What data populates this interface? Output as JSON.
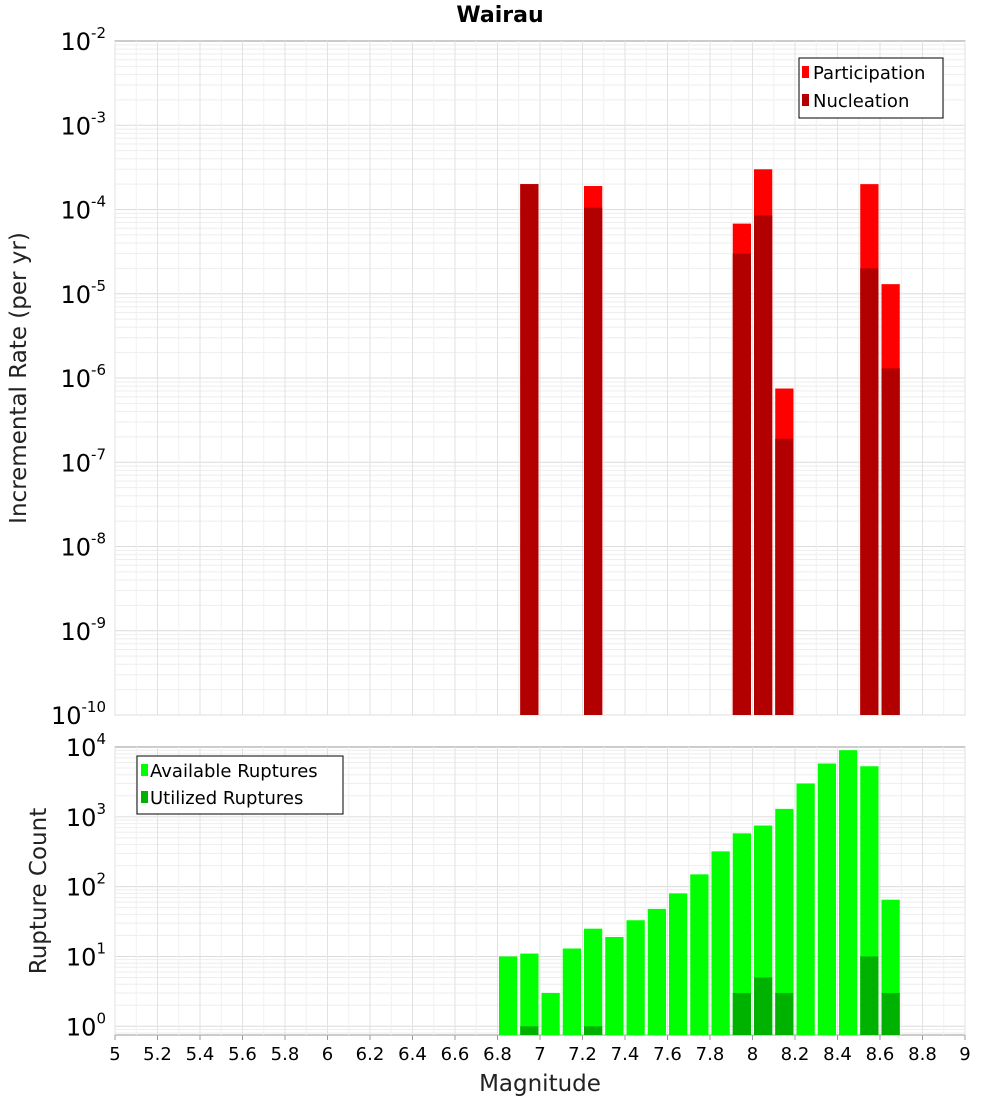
{
  "chart_data": [
    {
      "type": "bar",
      "title": "Wairau",
      "ylabel": "Incremental Rate (per yr)",
      "yscale": "log",
      "ylim": [
        1e-10,
        0.01
      ],
      "xlim": [
        5,
        9
      ],
      "grid": true,
      "legend_position": "top-right",
      "series": [
        {
          "name": "Participation",
          "color": "#ff0000",
          "x": [
            6.95,
            7.25,
            7.95,
            8.05,
            8.15,
            8.55,
            8.65
          ],
          "values": [
            0.0002,
            0.00019,
            6.8e-05,
            0.0003,
            7.5e-07,
            0.0002,
            1.3e-05
          ]
        },
        {
          "name": "Nucleation",
          "color": "#b20000",
          "x": [
            6.95,
            7.25,
            7.95,
            8.05,
            8.15,
            8.55,
            8.65
          ],
          "values": [
            0.0002,
            0.000105,
            3e-05,
            8.5e-05,
            1.9e-07,
            2e-05,
            1.3e-06
          ]
        }
      ]
    },
    {
      "type": "bar",
      "xlabel": "Magnitude",
      "ylabel": "Rupture Count",
      "yscale": "log",
      "ylim": [
        0.75,
        10000
      ],
      "xlim": [
        5,
        9
      ],
      "grid": true,
      "legend_position": "top-left",
      "xticks": [
        "5",
        "5.2",
        "5.4",
        "5.6",
        "5.8",
        "6",
        "6.2",
        "6.4",
        "6.6",
        "6.8",
        "7",
        "7.2",
        "7.4",
        "7.6",
        "7.8",
        "8",
        "8.2",
        "8.4",
        "8.6",
        "8.8",
        "9"
      ],
      "series": [
        {
          "name": "Available Ruptures",
          "color": "#00ff00",
          "x": [
            6.85,
            6.95,
            7.05,
            7.15,
            7.25,
            7.35,
            7.45,
            7.55,
            7.65,
            7.75,
            7.85,
            7.95,
            8.05,
            8.15,
            8.25,
            8.35,
            8.45,
            8.55,
            8.65
          ],
          "values": [
            10,
            11,
            3,
            13,
            25,
            19,
            33,
            48,
            80,
            150,
            320,
            580,
            750,
            1300,
            3000,
            5800,
            9000,
            5300,
            65
          ]
        },
        {
          "name": "Utilized Ruptures",
          "color": "#00b200",
          "x": [
            6.95,
            7.25,
            7.95,
            8.05,
            8.15,
            8.55,
            8.65
          ],
          "values": [
            1,
            1,
            3,
            5,
            3,
            10,
            3
          ]
        }
      ]
    }
  ],
  "y_ticks": [
    {
      "base": "10",
      "exp": "-2"
    },
    {
      "base": "10",
      "exp": "-3"
    },
    {
      "base": "10",
      "exp": "-4"
    },
    {
      "base": "10",
      "exp": "-5"
    },
    {
      "base": "10",
      "exp": "-6"
    },
    {
      "base": "10",
      "exp": "-7"
    },
    {
      "base": "10",
      "exp": "-8"
    },
    {
      "base": "10",
      "exp": "-9"
    },
    {
      "base": "10",
      "exp": "-10"
    }
  ],
  "y_ticks_bottom": [
    {
      "base": "10",
      "exp": "4"
    },
    {
      "base": "10",
      "exp": "3"
    },
    {
      "base": "10",
      "exp": "2"
    },
    {
      "base": "10",
      "exp": "1"
    },
    {
      "base": "10",
      "exp": "0"
    }
  ]
}
